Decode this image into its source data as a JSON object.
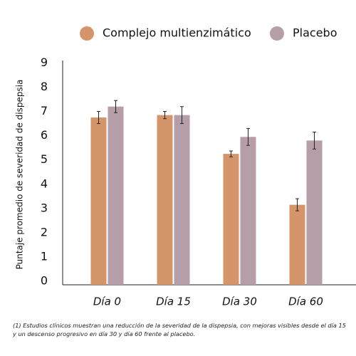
{
  "chart_data": {
    "type": "bar",
    "categories": [
      "Día 0",
      "Día 15",
      "Día 30",
      "Día 60"
    ],
    "series": [
      {
        "name": "Complejo multienzimático",
        "color": "#d4956a",
        "values": [
          6.9,
          7.0,
          5.4,
          3.3
        ],
        "errors": [
          0.25,
          0.15,
          0.12,
          0.25
        ]
      },
      {
        "name": "Placebo",
        "color": "#b59ea8",
        "values": [
          7.35,
          7.0,
          6.1,
          5.95
        ],
        "errors": [
          0.25,
          0.35,
          0.35,
          0.35
        ]
      }
    ],
    "ylabel": "Puntaje promedio de severidad de dispepsia",
    "ylim": [
      0,
      9.25
    ],
    "yticks": [
      0,
      1,
      2,
      3,
      4,
      5,
      6,
      7,
      8,
      9
    ],
    "grid": false,
    "legend": "top",
    "footnote": "(1) Estudios clínicos muestran una reducción de la severidad de la dispepsia, con mejoras visibles desde el día 15 y un descenso progresivo en día 30 y día 60 frente al placebo."
  }
}
